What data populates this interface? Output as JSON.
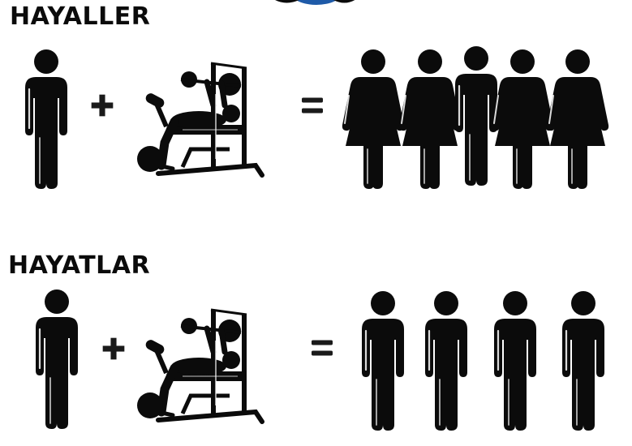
{
  "headings": {
    "dreams": "HAYALLER",
    "reality": "HAYATLAR"
  },
  "equations": {
    "dreams": {
      "left": "man-icon",
      "operator_plus": "+",
      "equipment": "bench-press-icon",
      "operator_equals": "=",
      "result": [
        "woman-icon",
        "woman-icon",
        "man-icon",
        "woman-icon",
        "woman-icon"
      ]
    },
    "reality": {
      "left": "man-icon",
      "operator_plus": "+",
      "equipment": "bench-press-icon",
      "operator_equals": "=",
      "result": [
        "man-icon",
        "man-icon",
        "man-icon",
        "man-icon"
      ]
    }
  },
  "colors": {
    "figure": "#0b0b0b",
    "highlight": "#ffffff",
    "plus": "#1a1a1a",
    "logo": "#1e5aa8"
  }
}
